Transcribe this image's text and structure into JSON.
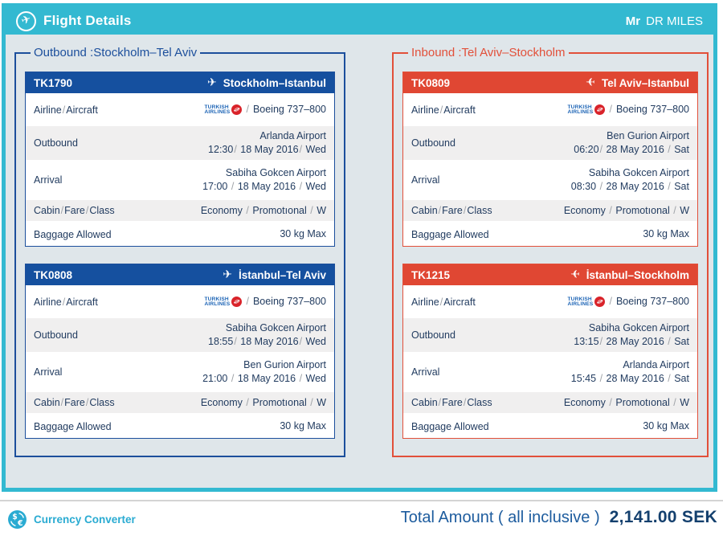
{
  "app_header": {
    "title": "Flight Details",
    "user_title": "Mr",
    "user_name": "DR MILES"
  },
  "row_labels": [
    "Airline/Aircraft",
    "Outbound",
    "Arrival",
    "Cabin/Fare/Class",
    "Baggage Allowed"
  ],
  "airline_logo": {
    "line1": "TURKISH",
    "line2": "AIRLINES",
    "separator": "/"
  },
  "colors": {
    "accent_cyan": "#33B9D1",
    "outbound_blue": "#15509F",
    "inbound_red": "#E04733",
    "turkish_red": "#D9232A",
    "content_background": "#DFE6EA",
    "text_navy": "#223C60"
  },
  "sections": [
    {
      "id": "outbound",
      "legend": "Outbound :Stockholm–Tel Aviv",
      "flights": [
        {
          "flight_no": "TK1790",
          "route": "Stockholm–Istanbul",
          "aircraft": "Boeing 737–800",
          "departure_airport": "Arlanda Airport",
          "departure_datetime": "12:30/ 18 May 2016/ Wed",
          "arrival_airport": "Sabiha Gokcen Airport",
          "arrival_datetime": "17:00 / 18 May 2016 / Wed",
          "cabin_fare_class": "Economy / Promotıonal / W",
          "baggage": "30 kg Max"
        },
        {
          "flight_no": "TK0808",
          "route": "İstanbul–Tel Aviv",
          "aircraft": "Boeing 737–800",
          "departure_airport": "Sabiha Gokcen Airport",
          "departure_datetime": "18:55/ 18 May 2016/ Wed",
          "arrival_airport": "Ben Gurion Airport",
          "arrival_datetime": "21:00 / 18 May 2016 / Wed",
          "cabin_fare_class": "Economy / Promotıonal / W",
          "baggage": "30 kg Max"
        }
      ]
    },
    {
      "id": "inbound",
      "legend": "Inbound :Tel Aviv–Stockholm",
      "flights": [
        {
          "flight_no": "TK0809",
          "route": "Tel Aviv–Istanbul",
          "aircraft": "Boeing 737–800",
          "departure_airport": "Ben Gurion Airport",
          "departure_datetime": "06:20/ 28 May 2016 / Sat",
          "arrival_airport": "Sabiha Gokcen Airport",
          "arrival_datetime": "08:30 / 28 May 2016 / Sat",
          "cabin_fare_class": "Economy / Promotıonal / W",
          "baggage": "30 kg Max"
        },
        {
          "flight_no": "TK1215",
          "route": "İstanbul–Stockholm",
          "aircraft": "Boeing 737–800",
          "departure_airport": "Sabiha Gokcen Airport",
          "departure_datetime": "13:15/ 28 May 2016 / Sat",
          "arrival_airport": "Arlanda Airport",
          "arrival_datetime": "15:45 / 28 May 2016 / Sat",
          "cabin_fare_class": "Economy / Promotıonal / W",
          "baggage": "30 kg Max"
        }
      ]
    }
  ],
  "footer": {
    "currency_converter": "Currency Converter",
    "total_label": "Total Amount ( all inclusive )",
    "total_amount": "2,141.00 SEK"
  }
}
